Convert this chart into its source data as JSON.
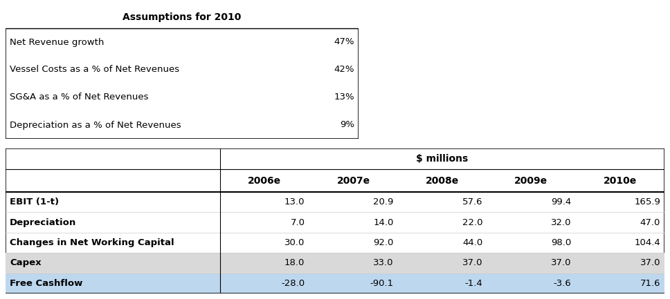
{
  "assumptions_title": "Assumptions for 2010",
  "assumptions_rows": [
    [
      "Net Revenue growth",
      "47%"
    ],
    [
      "Vessel Costs as a % of Net Revenues",
      "42%"
    ],
    [
      "SG&A as a % of Net Revenues",
      "13%"
    ],
    [
      "Depreciation as a % of Net Revenues",
      "9%"
    ]
  ],
  "fcf_header_label": "$ millions",
  "fcf_years": [
    "2006e",
    "2007e",
    "2008e",
    "2009e",
    "2010e"
  ],
  "fcf_rows": [
    {
      "label": "EBIT (1-t)",
      "values": [
        "13.0",
        "20.9",
        "57.6",
        "99.4",
        "165.9"
      ],
      "bold": true,
      "bg": "white"
    },
    {
      "label": "Depreciation",
      "values": [
        "7.0",
        "14.0",
        "22.0",
        "32.0",
        "47.0"
      ],
      "bold": true,
      "bg": "white"
    },
    {
      "label": "Changes in Net Working Capital",
      "values": [
        "30.0",
        "92.0",
        "44.0",
        "98.0",
        "104.4"
      ],
      "bold": true,
      "bg": "white"
    },
    {
      "label": "Capex",
      "values": [
        "18.0",
        "33.0",
        "37.0",
        "37.0",
        "37.0"
      ],
      "bold": true,
      "bg": "#d9d9d9"
    },
    {
      "label": "Free Cashflow",
      "values": [
        "-28.0",
        "-90.1",
        "-1.4",
        "-3.6",
        "71.6"
      ],
      "bold": true,
      "bg": "#bdd7ee"
    }
  ],
  "fig_width": 9.68,
  "fig_height": 4.33,
  "dpi": 100,
  "light_gray": "#d9d9d9",
  "light_blue": "#bdd7ee",
  "border_color": "#000000",
  "font_size_header": 10,
  "font_size_body": 9.5
}
